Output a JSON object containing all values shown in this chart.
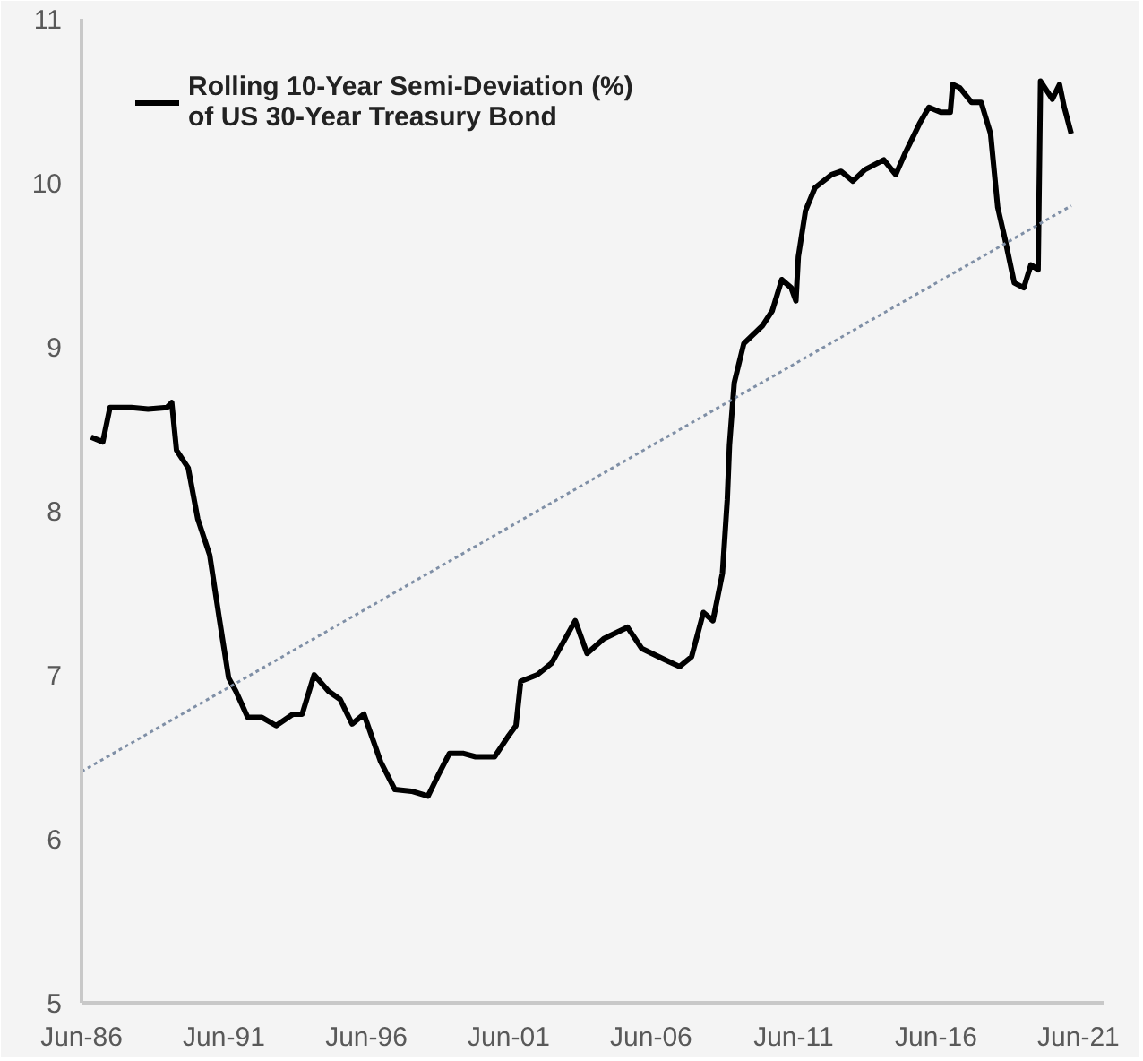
{
  "chart_data": {
    "type": "line",
    "xlim": [
      "1986-06",
      "2022-05"
    ],
    "ylim": [
      5,
      11
    ],
    "xticks": [
      {
        "value": "1986-06",
        "label": "Jun-86"
      },
      {
        "value": "1991-06",
        "label": "Jun-91"
      },
      {
        "value": "1996-06",
        "label": "Jun-96"
      },
      {
        "value": "2001-06",
        "label": "Jun-01"
      },
      {
        "value": "2006-06",
        "label": "Jun-06"
      },
      {
        "value": "2011-06",
        "label": "Jun-11"
      },
      {
        "value": "2016-06",
        "label": "Jun-16"
      },
      {
        "value": "2021-06",
        "label": "Jun-21"
      }
    ],
    "yticks": [
      5,
      6,
      7,
      8,
      9,
      10,
      11
    ],
    "grid": false,
    "legend": "top left",
    "marker": "none",
    "series": [
      {
        "name": "Rolling 10-Year Semi-Deviation (%)\nof US 30-Year Treasury Bond",
        "color": "#000000",
        "line_style": "solid",
        "x": [
          "1986-10",
          "1987-03",
          "1987-06",
          "1988-03",
          "1988-10",
          "1989-06",
          "1989-08",
          "1989-10",
          "1990-03",
          "1990-07",
          "1990-12",
          "1991-04",
          "1991-08",
          "1991-11",
          "1992-04",
          "1992-10",
          "1993-04",
          "1993-11",
          "1994-03",
          "1994-08",
          "1995-02",
          "1995-07",
          "1995-12",
          "1996-05",
          "1996-12",
          "1997-06",
          "1998-01",
          "1998-08",
          "1998-12",
          "1999-05",
          "1999-11",
          "2000-04",
          "2000-12",
          "2001-06",
          "2001-09",
          "2001-11",
          "2002-06",
          "2002-12",
          "2003-10",
          "2004-03",
          "2004-10",
          "2005-08",
          "2006-02",
          "2006-12",
          "2007-06",
          "2007-11",
          "2008-04",
          "2008-08",
          "2008-12",
          "2009-02",
          "2009-03",
          "2009-05",
          "2009-09",
          "2010-05",
          "2010-09",
          "2011-01",
          "2011-05",
          "2011-07",
          "2011-08",
          "2011-11",
          "2012-03",
          "2012-10",
          "2013-02",
          "2013-07",
          "2013-12",
          "2014-08",
          "2015-01",
          "2015-05",
          "2015-11",
          "2016-03",
          "2016-08",
          "2016-12",
          "2017-01",
          "2017-04",
          "2017-09",
          "2018-01",
          "2018-05",
          "2018-08",
          "2018-11",
          "2019-03",
          "2019-07",
          "2019-10",
          "2020-01",
          "2020-02",
          "2020-07",
          "2020-10",
          "2020-12",
          "2021-03"
        ],
        "values": [
          8.45,
          8.42,
          8.63,
          8.63,
          8.62,
          8.63,
          8.66,
          8.37,
          8.26,
          7.95,
          7.73,
          7.35,
          6.98,
          6.9,
          6.74,
          6.74,
          6.69,
          6.76,
          6.76,
          7.0,
          6.9,
          6.85,
          6.7,
          6.76,
          6.47,
          6.3,
          6.29,
          6.26,
          6.38,
          6.52,
          6.52,
          6.5,
          6.5,
          6.63,
          6.69,
          6.96,
          7.0,
          7.07,
          7.33,
          7.13,
          7.22,
          7.29,
          7.16,
          7.09,
          7.05,
          7.11,
          7.38,
          7.33,
          7.62,
          8.07,
          8.4,
          8.78,
          9.02,
          9.13,
          9.22,
          9.41,
          9.36,
          9.28,
          9.55,
          9.83,
          9.97,
          10.05,
          10.07,
          10.01,
          10.08,
          10.14,
          10.05,
          10.18,
          10.36,
          10.46,
          10.43,
          10.43,
          10.6,
          10.58,
          10.49,
          10.49,
          10.3,
          9.85,
          9.66,
          9.39,
          9.36,
          9.5,
          9.47,
          10.62,
          10.51,
          10.6,
          10.46,
          10.3
        ]
      },
      {
        "color": "#7f8fa6",
        "line_style": "dotted",
        "x": [
          "1986-06",
          "2021-03"
        ],
        "values": [
          6.41,
          9.86
        ]
      }
    ]
  }
}
